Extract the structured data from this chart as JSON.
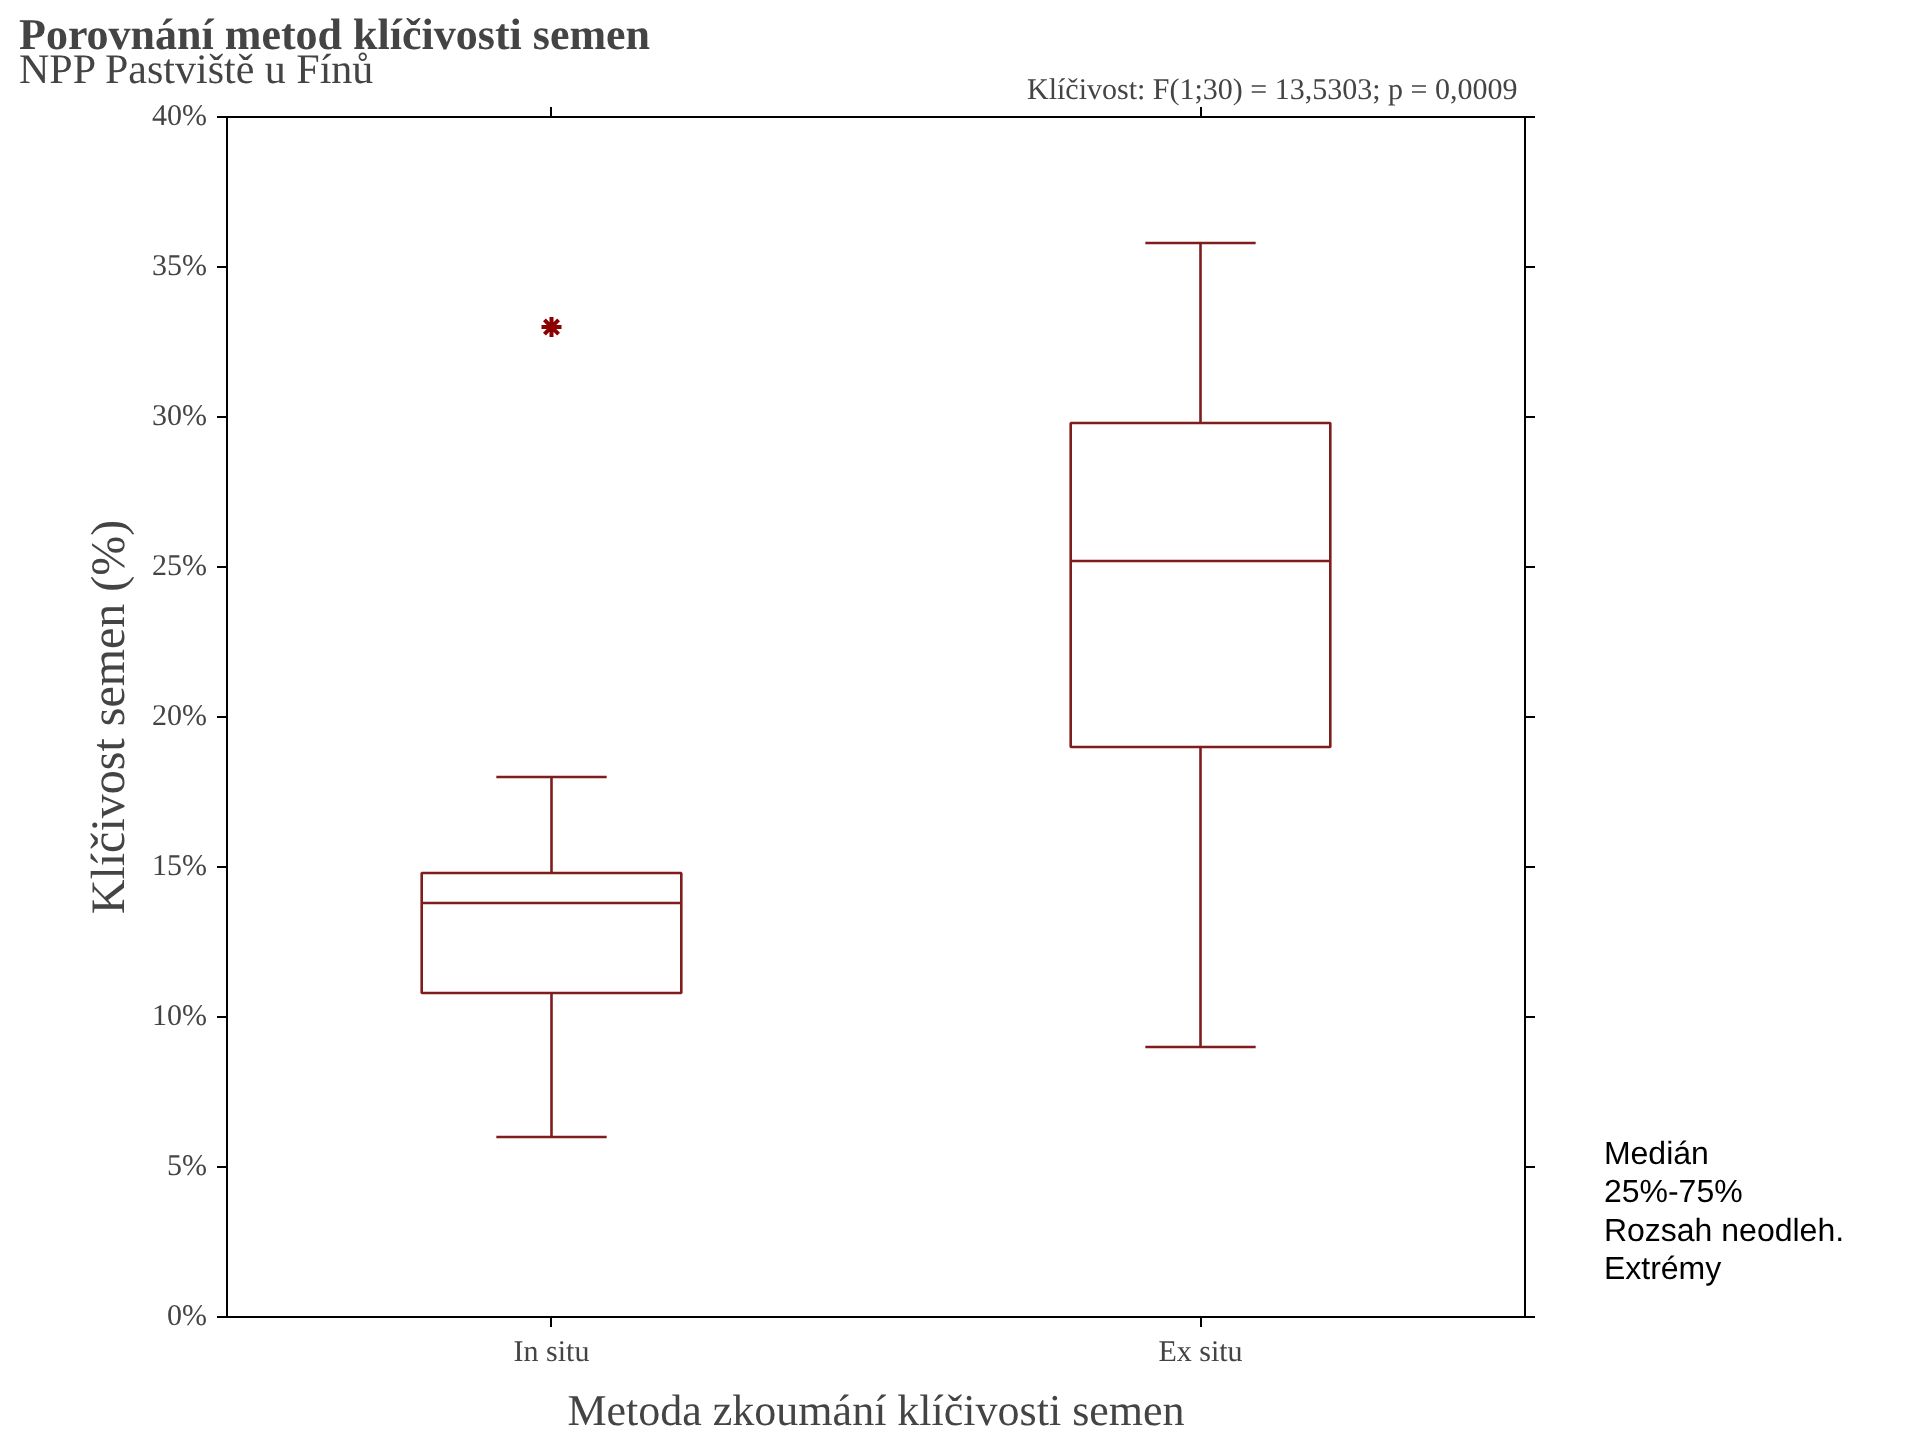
{
  "chart_data": {
    "type": "box",
    "title": "Porovnání metod klíčivosti semen",
    "subtitle": "NPP Pastviště u Fínů",
    "xlabel": "Metoda zkoumání klíčivosti semen",
    "ylabel": "Klíčivost semen (%)",
    "categories": [
      "In situ",
      "Ex situ"
    ],
    "boxes": [
      {
        "low": 6,
        "q1": 10.8,
        "median": 13.8,
        "q3": 14.8,
        "high": 18,
        "outliers": [
          33
        ]
      },
      {
        "low": 9,
        "q1": 19,
        "median": 25.2,
        "q3": 29.8,
        "high": 35.8
      }
    ],
    "color": "#7f1d1d",
    "ylim": [
      0,
      40
    ],
    "yticks": [
      {
        "value": 0,
        "label": "0%"
      },
      {
        "value": 5,
        "label": "5%"
      },
      {
        "value": 10,
        "label": "10%"
      },
      {
        "value": 15,
        "label": "15%"
      },
      {
        "value": 20,
        "label": "20%"
      },
      {
        "value": 25,
        "label": "25%"
      },
      {
        "value": 30,
        "label": "30%"
      },
      {
        "value": 35,
        "label": "35%"
      },
      {
        "value": 40,
        "label": "40%"
      }
    ],
    "grid": false,
    "annotations": [
      "Klíčivost:  F(1;30) = 13,5303; p = 0,0009",
      "Medián",
      "25%-75%",
      "Rozsah neodleh.",
      "Extrémy"
    ]
  }
}
